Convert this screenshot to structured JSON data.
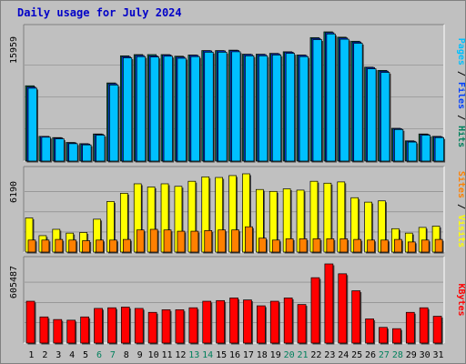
{
  "chart_data": {
    "type": "bar",
    "title": "Daily usage for July 2024",
    "x": [
      "1",
      "2",
      "3",
      "4",
      "5",
      "6",
      "7",
      "8",
      "9",
      "10",
      "11",
      "12",
      "13",
      "14",
      "15",
      "16",
      "17",
      "18",
      "19",
      "20",
      "21",
      "22",
      "23",
      "24",
      "25",
      "26",
      "27",
      "28",
      "29",
      "30",
      "31"
    ],
    "weekend_days": [
      "6",
      "7",
      "13",
      "14",
      "20",
      "21",
      "27",
      "28"
    ],
    "panels": [
      {
        "name": "hits-files-pages",
        "ymax_label": "15959",
        "ymax": 15959,
        "legend": [
          {
            "label": "Pages",
            "color": "#00c0ff"
          },
          {
            "label": "Files",
            "color": "#0040ff"
          },
          {
            "label": "Hits",
            "color": "#00805c"
          }
        ],
        "series": [
          {
            "name": "Hits",
            "values": [
              9300,
              3050,
              2900,
              2300,
              2150,
              3350,
              9650,
              13000,
              13150,
              13150,
              13150,
              12950,
              13100,
              13650,
              13650,
              13700,
              13200,
              13200,
              13300,
              13500,
              13100,
              15250,
              15959,
              15300,
              14800,
              11600,
              11200,
              4050,
              2500,
              3350,
              3050
            ]
          },
          {
            "name": "Files",
            "values": [
              9150,
              3050,
              2850,
              2250,
              2100,
              3300,
              9550,
              12900,
              13050,
              13000,
              13100,
              12850,
              13050,
              13600,
              13600,
              13650,
              13150,
              13150,
              13250,
              13450,
              13050,
              15150,
              15850,
              15200,
              14700,
              11550,
              11100,
              4000,
              2450,
              3300,
              3000
            ]
          },
          {
            "name": "Pages",
            "values": [
              9000,
              2950,
              2750,
              2150,
              2000,
              3200,
              9400,
              12750,
              12900,
              12850,
              12950,
              12700,
              12900,
              13450,
              13450,
              13500,
              13000,
              13000,
              13100,
              13300,
              12900,
              15000,
              15700,
              15050,
              14550,
              11400,
              10950,
              3900,
              2350,
              3200,
              2900
            ]
          }
        ]
      },
      {
        "name": "visits-sites",
        "ymax_label": "6190",
        "ymax": 6190,
        "legend": [
          {
            "label": "Sites",
            "color": "#ff8000"
          },
          {
            "label": "Visits",
            "color": "#ffff00"
          }
        ],
        "series": [
          {
            "name": "Visits",
            "values": [
              2700,
              1300,
              1800,
              1500,
              1550,
              2600,
              4000,
              4650,
              5400,
              5150,
              5400,
              5200,
              5600,
              5950,
              5900,
              6050,
              6190,
              4950,
              4800,
              5000,
              4900,
              5600,
              5450,
              5550,
              4300,
              3950,
              4050,
              1850,
              1500,
              1950,
              2050
            ]
          },
          {
            "name": "Sites",
            "values": [
              950,
              950,
              1000,
              950,
              900,
              950,
              950,
              1000,
              1750,
              1800,
              1750,
              1650,
              1650,
              1700,
              1750,
              1750,
              2000,
              1100,
              950,
              1050,
              1050,
              1050,
              1050,
              1050,
              1000,
              950,
              950,
              1000,
              800,
              950,
              1000
            ]
          }
        ]
      },
      {
        "name": "kbytes",
        "ymax_label": "605487",
        "ymax": 605487,
        "legend": [
          {
            "label": "KBytes",
            "color": "#ff0000"
          }
        ],
        "series": [
          {
            "name": "KBytes",
            "values": [
              320000,
              200000,
              180000,
              175000,
              200000,
              265000,
              270000,
              275000,
              265000,
              235000,
              255000,
              255000,
              270000,
              320000,
              325000,
              345000,
              330000,
              285000,
              320000,
              345000,
              295000,
              500000,
              605487,
              530000,
              400000,
              185000,
              120000,
              110000,
              235000,
              270000,
              205000
            ]
          }
        ]
      }
    ]
  }
}
